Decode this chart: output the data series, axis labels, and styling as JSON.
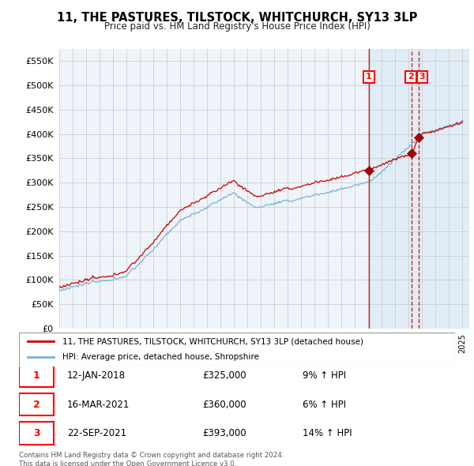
{
  "title": "11, THE PASTURES, TILSTOCK, WHITCHURCH, SY13 3LP",
  "subtitle": "Price paid vs. HM Land Registry's House Price Index (HPI)",
  "ylim": [
    0,
    575000
  ],
  "yticks": [
    0,
    50000,
    100000,
    150000,
    200000,
    250000,
    300000,
    350000,
    400000,
    450000,
    500000,
    550000
  ],
  "line1_color": "#cc0000",
  "line2_color": "#7ab0d4",
  "background_color": "#ffffff",
  "grid_color": "#cccccc",
  "chart_bg": "#f0f4f8",
  "legend_label1": "11, THE PASTURES, TILSTOCK, WHITCHURCH, SY13 3LP (detached house)",
  "legend_label2": "HPI: Average price, detached house, Shropshire",
  "transactions": [
    {
      "label": "1",
      "date": "12-JAN-2018",
      "price": "£325,000",
      "pct": "9% ↑ HPI",
      "year": 2018.04
    },
    {
      "label": "2",
      "date": "16-MAR-2021",
      "price": "£360,000",
      "pct": "6% ↑ HPI",
      "year": 2021.21
    },
    {
      "label": "3",
      "date": "22-SEP-2021",
      "price": "£393,000",
      "pct": "14% ↑ HPI",
      "year": 2021.73
    }
  ],
  "t_prices": [
    325000,
    360000,
    393000
  ],
  "footnote": "Contains HM Land Registry data © Crown copyright and database right 2024.\nThis data is licensed under the Open Government Licence v3.0.",
  "xmin": 1995,
  "xmax": 2025.5
}
